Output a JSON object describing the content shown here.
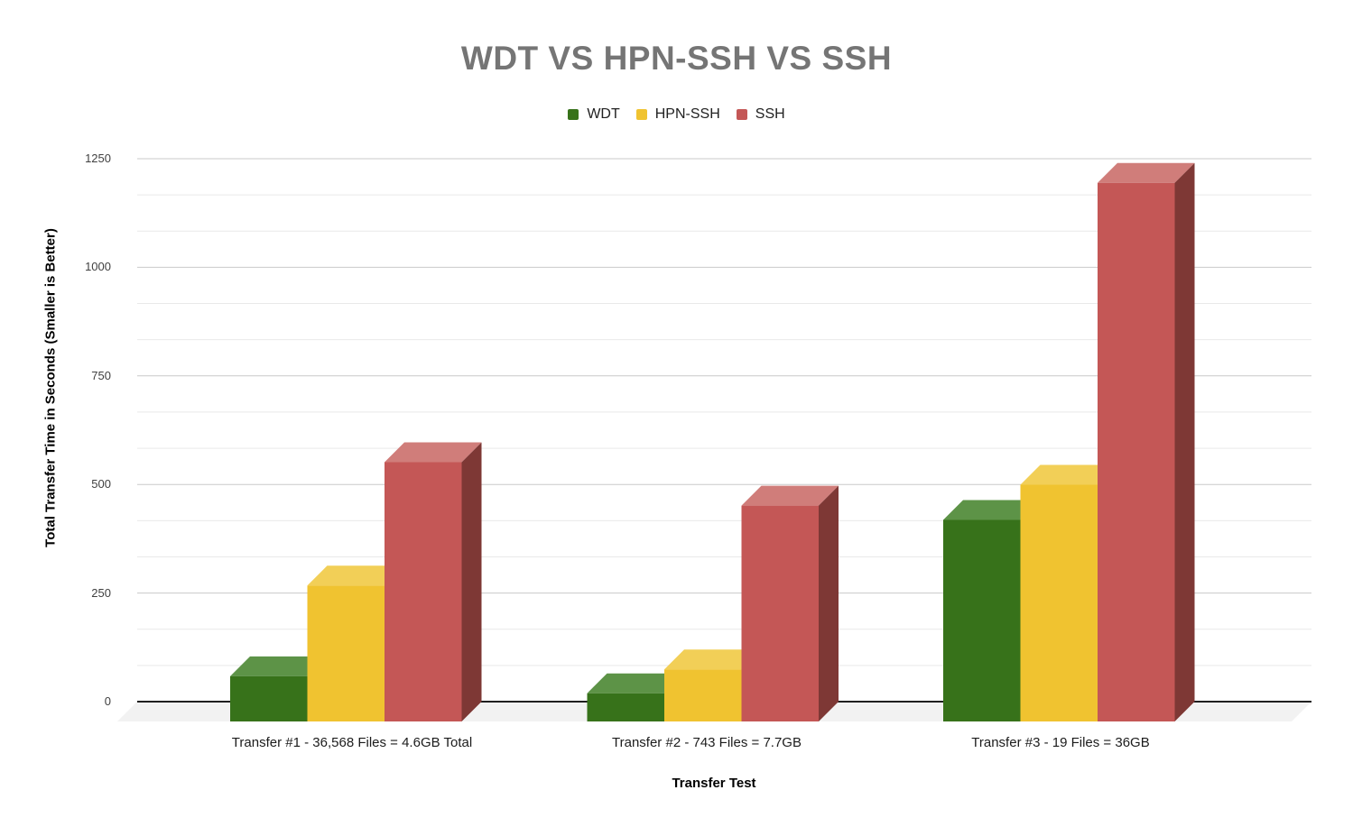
{
  "title": "WDT VS HPN-SSH VS SSH",
  "chart_data": {
    "type": "bar",
    "variant": "3d-column",
    "title": "WDT VS HPN-SSH VS SSH",
    "xlabel": "Transfer Test",
    "ylabel": "Total Transfer Time in Seconds (Smaller is Better)",
    "legend_position": "top",
    "grid": true,
    "ylim": [
      0,
      1250
    ],
    "yticks": [
      0,
      250,
      500,
      750,
      1000,
      1250
    ],
    "minor_gridlines_per_major": 3,
    "categories": [
      "Transfer #1 - 36,568 Files = 4.6GB Total",
      "Transfer #2 - 743 Files = 7.7GB",
      "Transfer #3 - 19 Files = 36GB"
    ],
    "series": [
      {
        "name": "WDT",
        "values": [
          104,
          65,
          464
        ],
        "color": "#37721a",
        "color_top": "#5d9347",
        "color_side": "#2a5a13"
      },
      {
        "name": "HPN-SSH",
        "values": [
          313,
          120,
          545
        ],
        "color": "#f0c330",
        "color_top": "#f2cf57",
        "color_side": "#b8922a"
      },
      {
        "name": "SSH",
        "values": [
          597,
          497,
          1240
        ],
        "color": "#c45756",
        "color_top": "#d07d7a",
        "color_side": "#7e3835"
      }
    ]
  },
  "colors": {
    "title_text": "#757575",
    "axis_line": "#1f1f1f",
    "gridline_major": "#c9c9c9",
    "gridline_minor": "#e9e9e9",
    "floor": "#f2f2f2",
    "tick_text": "#404040"
  }
}
